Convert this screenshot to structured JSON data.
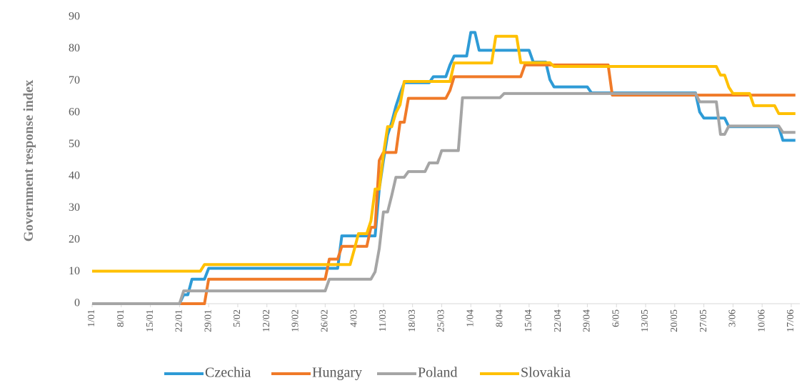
{
  "chart_data": {
    "type": "line",
    "ylabel": "Government response index",
    "ylim": [
      0,
      90
    ],
    "yticks": [
      0,
      10,
      20,
      30,
      40,
      50,
      60,
      70,
      80,
      90
    ],
    "grid": false,
    "legend": "bottom",
    "categories": [
      "1/01",
      null,
      null,
      null,
      null,
      null,
      null,
      "8/01",
      null,
      null,
      null,
      null,
      null,
      null,
      "15/01",
      null,
      null,
      null,
      null,
      null,
      null,
      "22/01",
      null,
      null,
      null,
      null,
      null,
      null,
      "29/01",
      null,
      null,
      null,
      null,
      null,
      null,
      "5/02",
      null,
      null,
      null,
      null,
      null,
      null,
      "12/02",
      null,
      null,
      null,
      null,
      null,
      null,
      "19/02",
      null,
      null,
      null,
      null,
      null,
      null,
      "26/02",
      null,
      null,
      null,
      null,
      null,
      null,
      "4/03",
      null,
      null,
      null,
      null,
      null,
      null,
      "11/03",
      null,
      null,
      null,
      null,
      null,
      null,
      "18/03",
      null,
      null,
      null,
      null,
      null,
      null,
      "25/03",
      null,
      null,
      null,
      null,
      null,
      null,
      "1/04",
      null,
      null,
      null,
      null,
      null,
      null,
      "8/04",
      null,
      null,
      null,
      null,
      null,
      null,
      "15/04",
      null,
      null,
      null,
      null,
      null,
      null,
      "22/04",
      null,
      null,
      null,
      null,
      null,
      null,
      "29/04",
      null,
      null,
      null,
      null,
      null,
      null,
      "6/05",
      null,
      null,
      null,
      null,
      null,
      null,
      "13/05",
      null,
      null,
      null,
      null,
      null,
      null,
      "20/05",
      null,
      null,
      null,
      null,
      null,
      null,
      "27/05",
      null,
      null,
      null,
      null,
      null,
      null,
      "3/06",
      null,
      null,
      null,
      null,
      null,
      null,
      "10/06",
      null,
      null,
      null,
      null,
      null,
      null,
      "17/06",
      null
    ],
    "series": [
      {
        "name": "Czechia",
        "color": "#2e9bd6",
        "values": [
          0,
          0,
          0,
          0,
          0,
          0,
          0,
          0,
          0,
          0,
          0,
          0,
          0,
          0,
          0,
          0,
          0,
          0,
          0,
          0,
          0,
          0,
          2.8,
          2.8,
          7.7,
          7.7,
          7.7,
          7.7,
          11.1,
          11.1,
          11.1,
          11.1,
          11.1,
          11.1,
          11.1,
          11.1,
          11.1,
          11.1,
          11.1,
          11.1,
          11.1,
          11.1,
          11.1,
          11.1,
          11.1,
          11.1,
          11.1,
          11.1,
          11.1,
          11.1,
          11.1,
          11.1,
          11.1,
          11.1,
          11.1,
          11.1,
          11.1,
          11.1,
          11.1,
          11.1,
          21.3,
          21.3,
          21.3,
          21.3,
          21.3,
          21.3,
          21.3,
          21.3,
          21.3,
          36,
          45,
          53,
          57,
          62,
          66,
          69.4,
          69.4,
          69.4,
          69.4,
          69.4,
          69.4,
          69.4,
          71.3,
          71.3,
          71.3,
          71.3,
          75,
          77.8,
          77.8,
          77.8,
          77.8,
          85.2,
          85.2,
          79.6,
          79.6,
          79.6,
          79.6,
          79.6,
          79.6,
          79.6,
          79.6,
          79.6,
          79.6,
          79.6,
          79.6,
          79.6,
          75.9,
          75.9,
          75.9,
          75.9,
          70.4,
          68.1,
          68.1,
          68.1,
          68.1,
          68.1,
          68.1,
          68.1,
          68.1,
          68.1,
          66.2,
          66.2,
          66.2,
          66.2,
          66.2,
          66.2,
          66.2,
          66.2,
          66.2,
          66.2,
          66.2,
          66.2,
          66.2,
          66.2,
          66.2,
          66.2,
          66.2,
          66.2,
          66.2,
          66.2,
          66.2,
          66.2,
          66.2,
          66.2,
          66.2,
          66.2,
          60.2,
          58.3,
          58.3,
          58.3,
          58.3,
          58.3,
          58.3,
          55.6,
          55.6,
          55.6,
          55.6,
          55.6,
          55.6,
          55.6,
          55.6,
          55.6,
          55.6,
          55.6,
          55.6,
          55.6,
          51.3,
          51.3,
          51.3,
          51.3
        ]
      },
      {
        "name": "Hungary",
        "color": "#f07a28",
        "values": [
          0,
          0,
          0,
          0,
          0,
          0,
          0,
          0,
          0,
          0,
          0,
          0,
          0,
          0,
          0,
          0,
          0,
          0,
          0,
          0,
          0,
          0,
          0,
          0,
          0,
          0,
          0,
          0,
          7.7,
          7.7,
          7.7,
          7.7,
          7.7,
          7.7,
          7.7,
          7.7,
          7.7,
          7.7,
          7.7,
          7.7,
          7.7,
          7.7,
          7.7,
          7.7,
          7.7,
          7.7,
          7.7,
          7.7,
          7.7,
          7.7,
          7.7,
          7.7,
          7.7,
          7.7,
          7.7,
          7.7,
          7.7,
          14,
          14,
          14,
          18,
          18,
          18,
          18,
          18,
          18,
          18,
          24,
          24,
          45,
          47.5,
          47.5,
          47.5,
          47.5,
          57,
          57,
          64.5,
          64.5,
          64.5,
          64.5,
          64.5,
          64.5,
          64.5,
          64.5,
          64.5,
          64.5,
          67,
          71.3,
          71.3,
          71.3,
          71.3,
          71.3,
          71.3,
          71.3,
          71.3,
          71.3,
          71.3,
          71.3,
          71.3,
          71.3,
          71.3,
          71.3,
          71.3,
          71.3,
          75,
          75,
          75,
          75,
          75,
          75,
          75,
          75,
          75,
          75,
          75,
          75,
          75,
          75,
          75,
          75,
          75,
          75,
          75,
          75,
          75,
          65.5,
          65.5,
          65.5,
          65.5,
          65.5,
          65.5,
          65.5,
          65.5,
          65.5,
          65.5,
          65.5,
          65.5,
          65.5,
          65.5,
          65.5,
          65.5,
          65.5,
          65.5,
          65.5,
          65.5,
          65.5,
          65.5,
          65.5,
          65.5,
          65.5,
          65.5,
          65.5,
          65.5,
          65.5,
          65.5,
          65.5,
          65.5,
          65.5,
          65.5,
          65.5,
          65.5,
          65.5,
          65.5,
          65.5,
          65.5,
          65.5,
          65.5,
          65.5,
          65.5,
          65.5
        ]
      },
      {
        "name": "Poland",
        "color": "#a5a5a5",
        "values": [
          0,
          0,
          0,
          0,
          0,
          0,
          0,
          0,
          0,
          0,
          0,
          0,
          0,
          0,
          0,
          0,
          0,
          0,
          0,
          0,
          0,
          0,
          4,
          4,
          4,
          4,
          4,
          4,
          4,
          4,
          4,
          4,
          4,
          4,
          4,
          4,
          4,
          4,
          4,
          4,
          4,
          4,
          4,
          4,
          4,
          4,
          4,
          4,
          4,
          4,
          4,
          4,
          4,
          4,
          4,
          4,
          4,
          7.7,
          7.7,
          7.7,
          7.7,
          7.7,
          7.7,
          7.7,
          7.7,
          7.7,
          7.7,
          7.7,
          10,
          17.3,
          28.8,
          28.8,
          34,
          39.7,
          39.7,
          39.7,
          41.5,
          41.5,
          41.5,
          41.5,
          41.5,
          44.2,
          44.2,
          44.2,
          48.1,
          48.1,
          48.1,
          48.1,
          48.1,
          64.7,
          64.7,
          64.7,
          64.7,
          64.7,
          64.7,
          64.7,
          64.7,
          64.7,
          64.7,
          66,
          66,
          66,
          66,
          66,
          66,
          66,
          66,
          66,
          66,
          66,
          66,
          66,
          66,
          66,
          66,
          66,
          66,
          66,
          66,
          66,
          66,
          66,
          66,
          66,
          66,
          66,
          66,
          66,
          66,
          66,
          66,
          66,
          66,
          66,
          66,
          66,
          66,
          66,
          66,
          66,
          66,
          66,
          66,
          66,
          66,
          66,
          63.4,
          63.4,
          63.4,
          63.4,
          63.4,
          53.2,
          53.2,
          55.8,
          55.8,
          55.8,
          55.8,
          55.8,
          55.8,
          55.8,
          55.8,
          55.8,
          55.8,
          55.8,
          55.8,
          55.8,
          53.8,
          53.8,
          53.8,
          53.8
        ]
      },
      {
        "name": "Slovakia",
        "color": "#ffc000",
        "values": [
          10.2,
          10.2,
          10.2,
          10.2,
          10.2,
          10.2,
          10.2,
          10.2,
          10.2,
          10.2,
          10.2,
          10.2,
          10.2,
          10.2,
          10.2,
          10.2,
          10.2,
          10.2,
          10.2,
          10.2,
          10.2,
          10.2,
          10.2,
          10.2,
          10.2,
          10.2,
          10.2,
          12.3,
          12.3,
          12.3,
          12.3,
          12.3,
          12.3,
          12.3,
          12.3,
          12.3,
          12.3,
          12.3,
          12.3,
          12.3,
          12.3,
          12.3,
          12.3,
          12.3,
          12.3,
          12.3,
          12.3,
          12.3,
          12.3,
          12.3,
          12.3,
          12.3,
          12.3,
          12.3,
          12.3,
          12.3,
          12.3,
          12.3,
          12.3,
          12.3,
          12.3,
          12.3,
          12.3,
          17,
          22,
          22,
          22,
          26,
          36,
          36,
          47,
          55.6,
          55.6,
          60,
          62.5,
          69.8,
          69.8,
          69.8,
          69.8,
          69.8,
          69.8,
          69.8,
          69.8,
          69.8,
          69.8,
          69.8,
          69.8,
          75.6,
          75.6,
          75.6,
          75.6,
          75.6,
          75.6,
          75.6,
          75.6,
          75.6,
          75.6,
          84,
          84,
          84,
          84,
          84,
          84,
          75.7,
          75.7,
          75.7,
          75.7,
          75.7,
          75.7,
          75.7,
          75.7,
          74.5,
          74.5,
          74.5,
          74.5,
          74.5,
          74.5,
          74.5,
          74.5,
          74.5,
          74.5,
          74.5,
          74.5,
          74.5,
          74.5,
          74.5,
          74.5,
          74.5,
          74.5,
          74.5,
          74.5,
          74.5,
          74.5,
          74.5,
          74.5,
          74.5,
          74.5,
          74.5,
          74.5,
          74.5,
          74.5,
          74.5,
          74.5,
          74.5,
          74.5,
          74.5,
          74.5,
          74.5,
          74.5,
          74.5,
          74.5,
          71.8,
          71.8,
          68,
          66,
          66,
          66,
          66,
          66,
          62.2,
          62.2,
          62.2,
          62.2,
          62.2,
          62.2,
          59.7,
          59.7,
          59.7,
          59.7,
          59.7
        ]
      }
    ]
  }
}
